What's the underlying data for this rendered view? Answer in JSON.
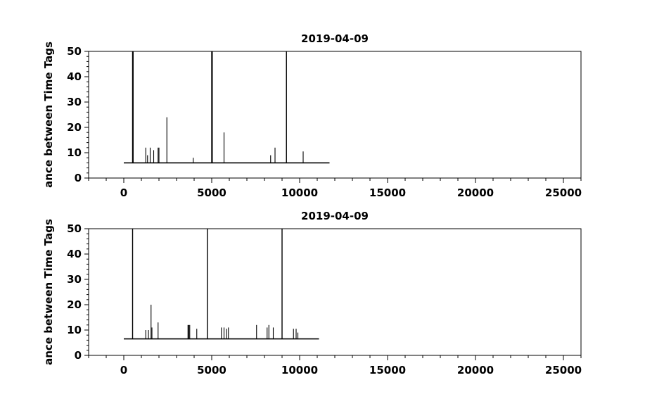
{
  "chart_data": [
    {
      "type": "line",
      "title": "2019-04-09",
      "xlabel": "",
      "ylabel": "ance between Time Tags",
      "xlim": [
        -2000,
        26000
      ],
      "ylim": [
        0,
        50
      ],
      "xticks": [
        0,
        5000,
        10000,
        15000,
        20000,
        25000
      ],
      "yticks": [
        0,
        10,
        20,
        30,
        40,
        50
      ],
      "grid": false,
      "baseline": 6,
      "x_start": 0,
      "x_end": 11700,
      "spikes": [
        {
          "x": 500,
          "y": 50
        },
        {
          "x": 530,
          "y": 50
        },
        {
          "x": 1250,
          "y": 12
        },
        {
          "x": 1350,
          "y": 9
        },
        {
          "x": 1500,
          "y": 12
        },
        {
          "x": 1700,
          "y": 11
        },
        {
          "x": 1950,
          "y": 12
        },
        {
          "x": 2000,
          "y": 12
        },
        {
          "x": 2450,
          "y": 24
        },
        {
          "x": 3950,
          "y": 8
        },
        {
          "x": 5000,
          "y": 50
        },
        {
          "x": 5030,
          "y": 50
        },
        {
          "x": 5700,
          "y": 18
        },
        {
          "x": 8350,
          "y": 9
        },
        {
          "x": 8600,
          "y": 12
        },
        {
          "x": 9250,
          "y": 50
        },
        {
          "x": 10200,
          "y": 10.5
        }
      ]
    },
    {
      "type": "line",
      "title": "2019-04-09",
      "xlabel": "",
      "ylabel": "ance between Time Tags",
      "xlim": [
        -2000,
        26000
      ],
      "ylim": [
        0,
        50
      ],
      "xticks": [
        0,
        5000,
        10000,
        15000,
        20000,
        25000
      ],
      "yticks": [
        0,
        10,
        20,
        30,
        40,
        50
      ],
      "grid": false,
      "baseline": 6.5,
      "x_start": 0,
      "x_end": 11100,
      "spikes": [
        {
          "x": 500,
          "y": 50
        },
        {
          "x": 1250,
          "y": 10
        },
        {
          "x": 1400,
          "y": 10
        },
        {
          "x": 1550,
          "y": 20
        },
        {
          "x": 1600,
          "y": 11
        },
        {
          "x": 1950,
          "y": 13
        },
        {
          "x": 3650,
          "y": 12
        },
        {
          "x": 3700,
          "y": 12
        },
        {
          "x": 3750,
          "y": 12
        },
        {
          "x": 4150,
          "y": 10.5
        },
        {
          "x": 4750,
          "y": 50
        },
        {
          "x": 5550,
          "y": 11
        },
        {
          "x": 5700,
          "y": 11
        },
        {
          "x": 5850,
          "y": 10.5
        },
        {
          "x": 5950,
          "y": 11
        },
        {
          "x": 7550,
          "y": 12
        },
        {
          "x": 8150,
          "y": 11
        },
        {
          "x": 8250,
          "y": 12
        },
        {
          "x": 8500,
          "y": 11
        },
        {
          "x": 9000,
          "y": 50
        },
        {
          "x": 9650,
          "y": 10.5
        },
        {
          "x": 9800,
          "y": 10.5
        },
        {
          "x": 9900,
          "y": 9
        }
      ]
    }
  ]
}
